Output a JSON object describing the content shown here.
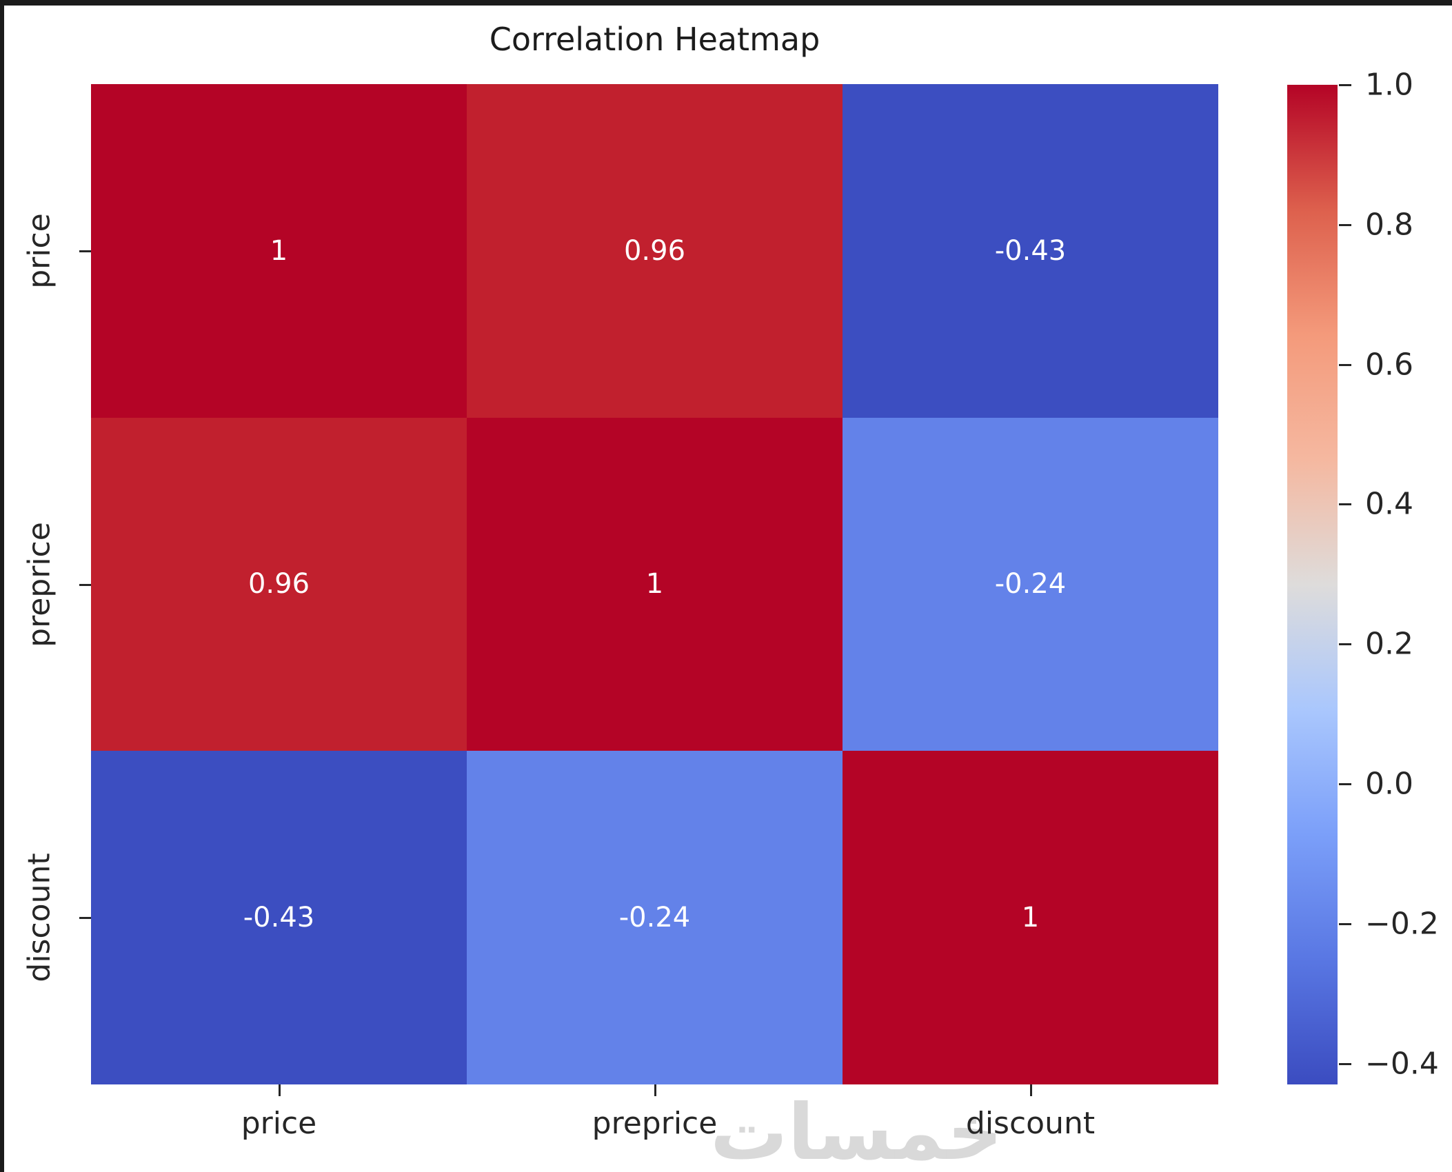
{
  "title": "Correlation Heatmap",
  "watermark_text": "خمسات",
  "chart_data": {
    "type": "heatmap",
    "title": "Correlation Heatmap",
    "categories": [
      "price",
      "preprice",
      "discount"
    ],
    "matrix": [
      [
        1,
        0.96,
        -0.43
      ],
      [
        0.96,
        1,
        -0.24
      ],
      [
        -0.43,
        -0.24,
        1
      ]
    ],
    "cell_labels": [
      [
        "1",
        "0.96",
        "-0.43"
      ],
      [
        "0.96",
        "1",
        "-0.24"
      ],
      [
        "-0.43",
        "-0.24",
        "1"
      ]
    ],
    "cell_colors": [
      [
        "#b40426",
        "#c1202e",
        "#3c4ec1"
      ],
      [
        "#c1202e",
        "#b40426",
        "#6382e9"
      ],
      [
        "#3c4ec1",
        "#6382e9",
        "#b40426"
      ]
    ],
    "annotation_text_color": "#ffffff",
    "colormap": "coolwarm",
    "vmin": -0.43,
    "vmax": 1.0,
    "colorbar": {
      "tick_values": [
        1.0,
        0.8,
        0.6,
        0.4,
        0.2,
        0.0,
        -0.2,
        -0.4
      ],
      "tick_labels": [
        "1.0",
        "0.8",
        "0.6",
        "0.4",
        "0.2",
        "0.0",
        "−0.2",
        "−0.4"
      ],
      "gradient_stops_top_to_bottom": [
        "#b40426",
        "#dd604d",
        "#f49a7b",
        "#f5b8a0",
        "#dedcdb",
        "#aac7fd",
        "#7b9ff9",
        "#5977e3",
        "#3b4cc0"
      ],
      "position": "right"
    },
    "grid": false,
    "legend": "colorbar"
  },
  "layout_colors": {
    "background": "#ffffff",
    "border": "#1b1b1b",
    "axis_text": "#262626"
  }
}
